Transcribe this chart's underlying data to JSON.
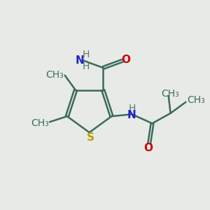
{
  "bg_color": "#e8eae8",
  "bond_color": "#3a6b5a",
  "S_color": "#b8a000",
  "N_color": "#2222cc",
  "O_color": "#cc0000",
  "H_color": "#5a7a6a",
  "line_width": 1.8,
  "font_size": 11,
  "font_size_small": 10,
  "fig_size": [
    3.0,
    3.0
  ],
  "dpi": 100,
  "xlim": [
    0,
    10
  ],
  "ylim": [
    0,
    10
  ]
}
